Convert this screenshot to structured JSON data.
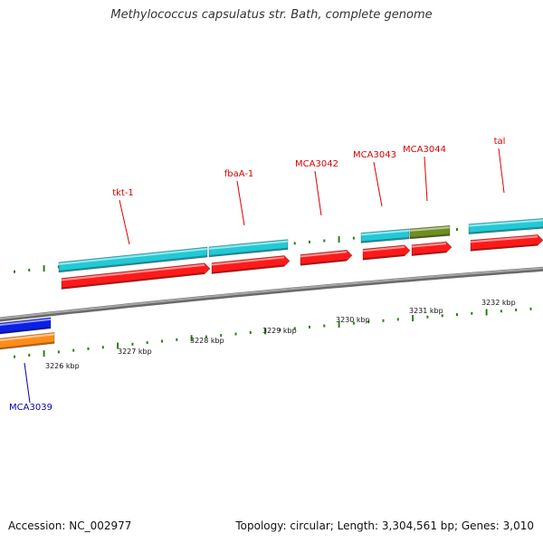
{
  "title": "Methylococcus capsulatus str. Bath, complete genome",
  "footer": {
    "accession": "Accession: NC_002977",
    "summary": "Topology: circular; Length: 3,304,561 bp; Genes: 3,010"
  },
  "colors": {
    "backbone": "#8c8c8c",
    "tick": "#2e7d16",
    "cds": "#ff1a1a",
    "gene": "#23c9d6",
    "olive": "#6f8e22",
    "minus_blue": "#0c1fe6",
    "minus_orange": "#ff8c1a",
    "label_plus": "#dd0000",
    "label_minus": "#0000bb"
  },
  "scale_labels": [
    "3226 kbp",
    "3227 kbp",
    "3228 kbp",
    "3229 kbp",
    "3230 kbp",
    "3231 kbp",
    "3232 kbp"
  ],
  "gene_labels": [
    {
      "text": "tkt-1",
      "strand": "plus"
    },
    {
      "text": "fbaA-1",
      "strand": "plus"
    },
    {
      "text": "MCA3042",
      "strand": "plus"
    },
    {
      "text": "MCA3043",
      "strand": "plus"
    },
    {
      "text": "MCA3044",
      "strand": "plus"
    },
    {
      "text": "tal",
      "strand": "plus"
    },
    {
      "text": "MCA3039",
      "strand": "minus"
    }
  ],
  "features": [
    {
      "name": "tkt-1-gene",
      "track": "gene",
      "color": "gene"
    },
    {
      "name": "tkt-1-cds",
      "track": "cds",
      "color": "cds"
    },
    {
      "name": "fbaA-1-gene",
      "track": "gene",
      "color": "gene"
    },
    {
      "name": "fbaA-1-cds",
      "track": "cds",
      "color": "cds"
    },
    {
      "name": "MCA3042-cds",
      "track": "cds",
      "color": "cds"
    },
    {
      "name": "MCA3043-gene",
      "track": "gene",
      "color": "gene"
    },
    {
      "name": "MCA3043-cds",
      "track": "cds",
      "color": "cds"
    },
    {
      "name": "MCA3044-gene",
      "track": "gene",
      "color": "olive"
    },
    {
      "name": "MCA3044-cds",
      "track": "cds",
      "color": "cds"
    },
    {
      "name": "tal-gene",
      "track": "gene",
      "color": "gene"
    },
    {
      "name": "tal-cds",
      "track": "cds",
      "color": "cds"
    },
    {
      "name": "MCA3039-gene",
      "track": "minus-gene",
      "color": "minus_blue"
    },
    {
      "name": "MCA3039-cds",
      "track": "minus-cds",
      "color": "minus_orange"
    }
  ]
}
